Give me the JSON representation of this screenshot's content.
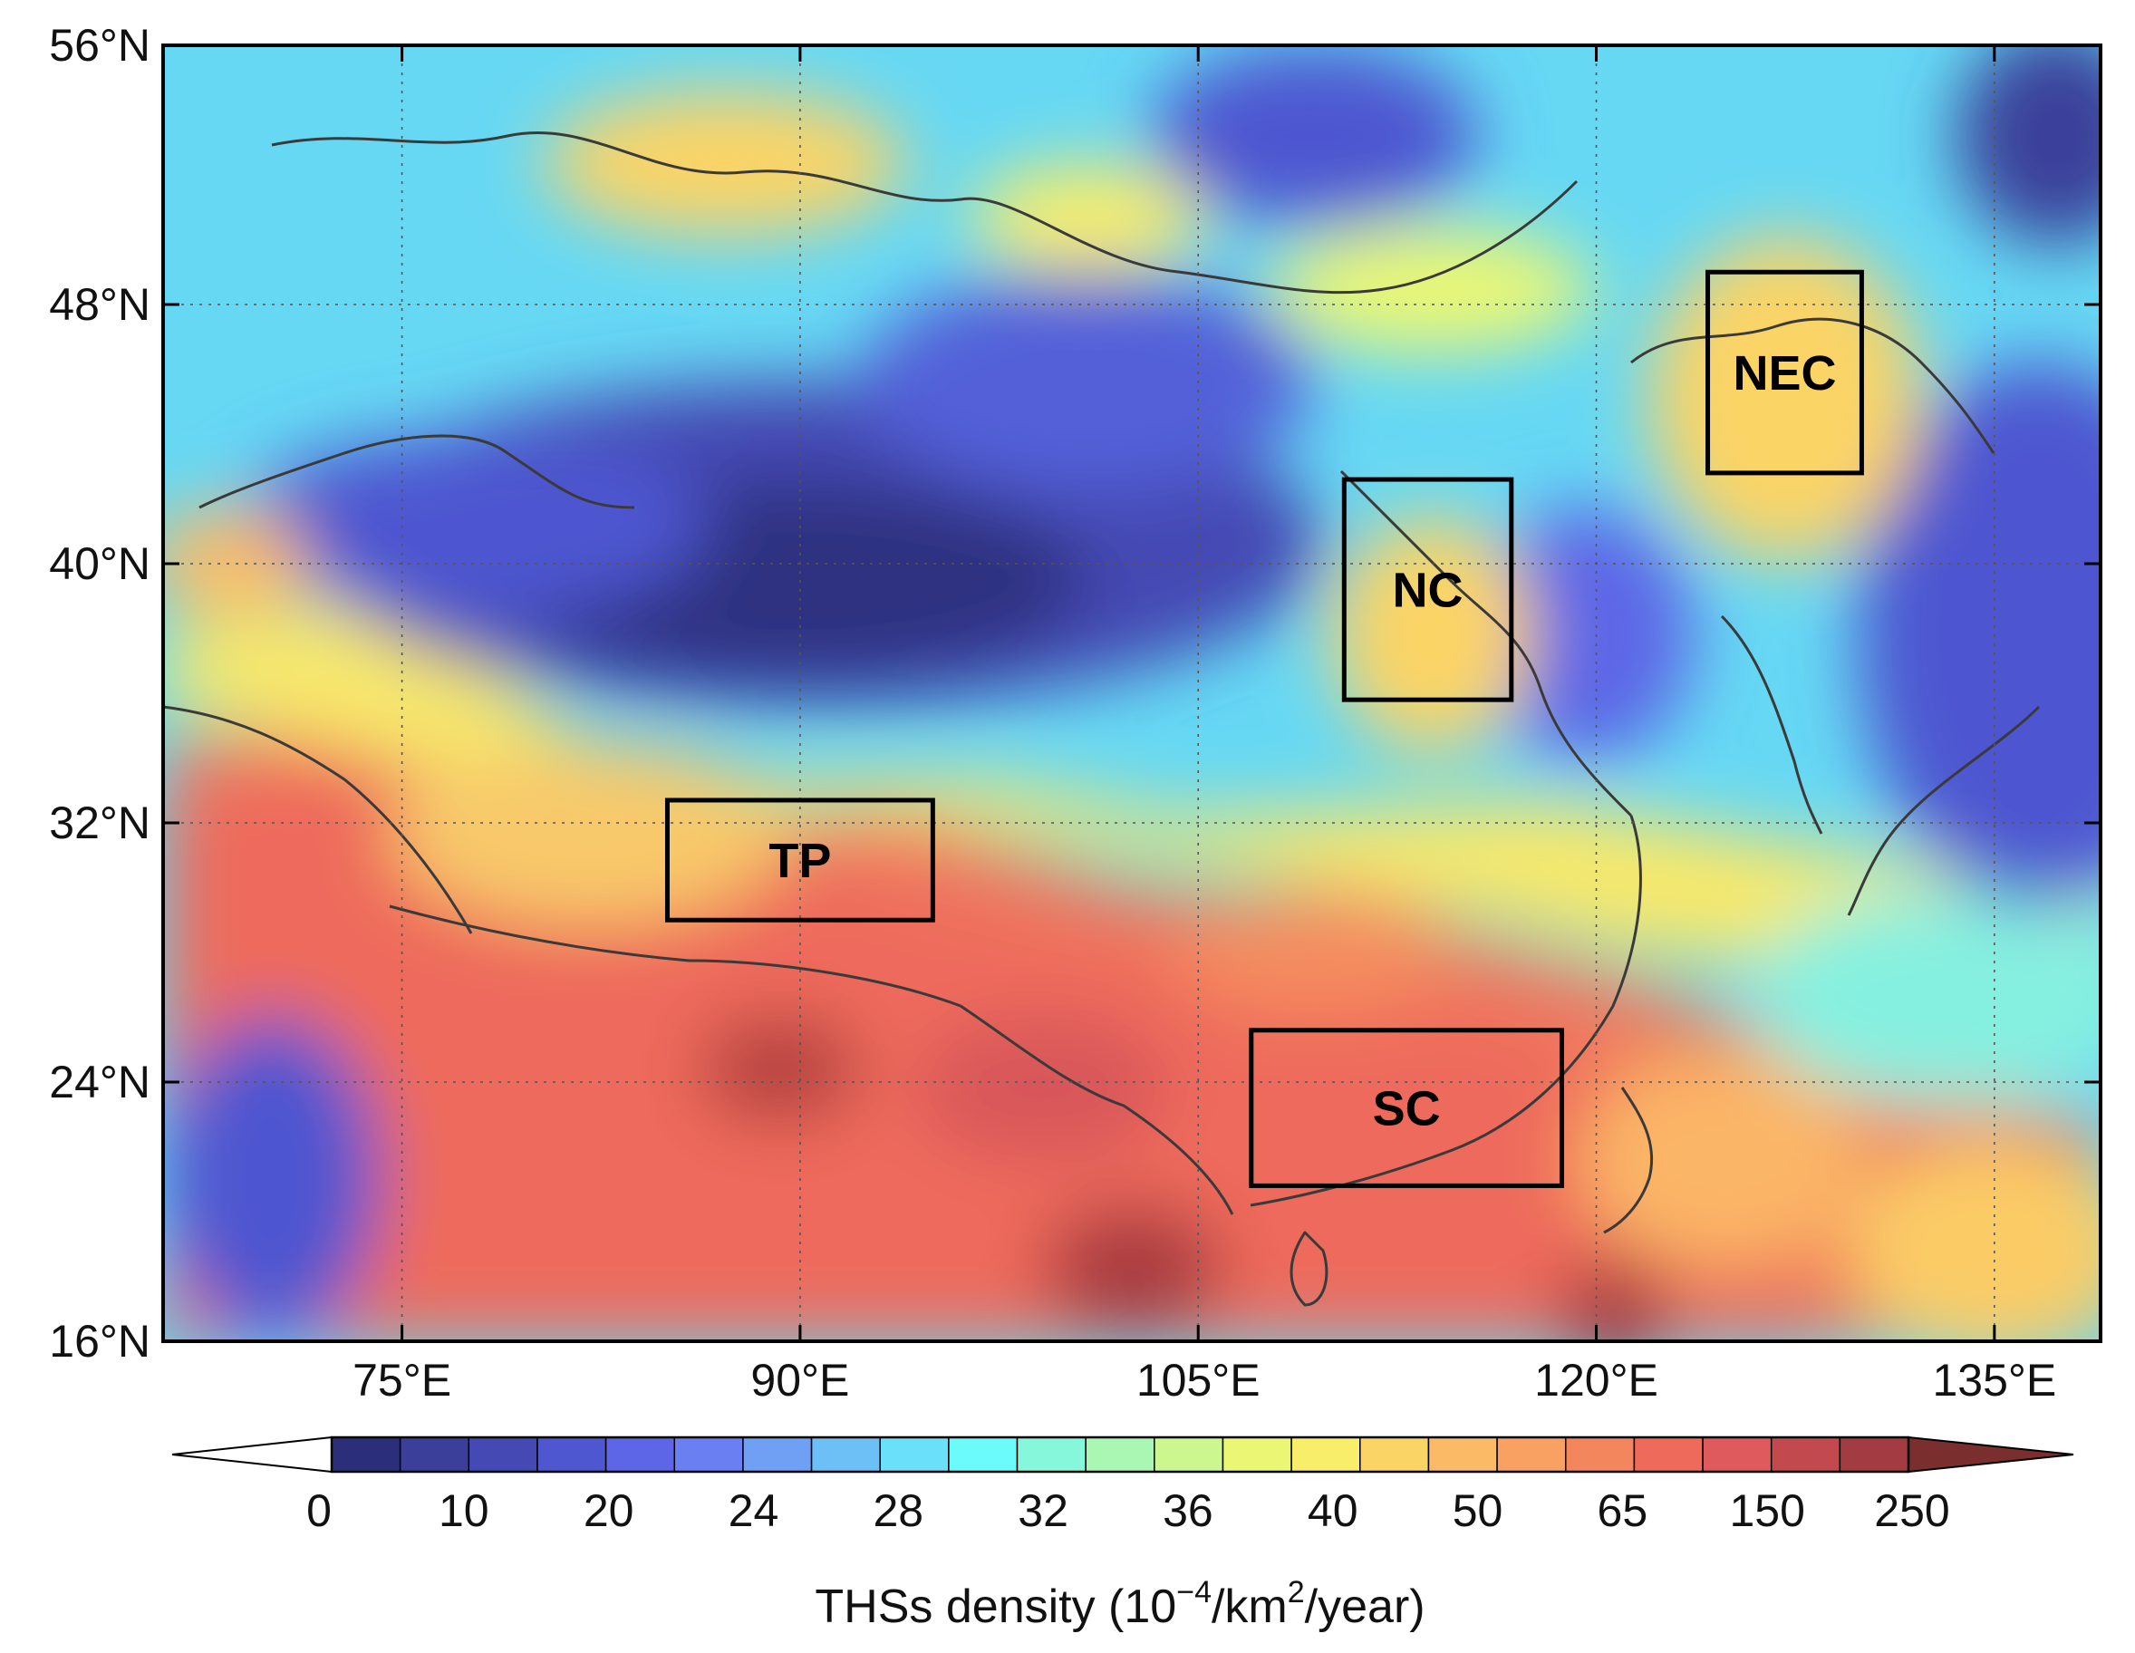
{
  "map": {
    "lon_range": [
      66,
      139
    ],
    "lat_range": [
      16,
      56
    ],
    "lon_ticks": [
      {
        "value": 75,
        "label": "75°E"
      },
      {
        "value": 90,
        "label": "90°E"
      },
      {
        "value": 105,
        "label": "105°E"
      },
      {
        "value": 120,
        "label": "120°E"
      },
      {
        "value": 135,
        "label": "135°E"
      }
    ],
    "lat_ticks": [
      {
        "value": 56,
        "label": "56°N"
      },
      {
        "value": 48,
        "label": "48°N"
      },
      {
        "value": 40,
        "label": "40°N"
      },
      {
        "value": 32,
        "label": "32°N"
      },
      {
        "value": 24,
        "label": "24°N"
      },
      {
        "value": 16,
        "label": "16°N"
      }
    ],
    "grid": "dotted",
    "regions": [
      {
        "id": "nec",
        "label": "NEC",
        "lon": [
          124.2,
          130.0
        ],
        "lat": [
          42.8,
          49.0
        ]
      },
      {
        "id": "nc",
        "label": "NC",
        "lon": [
          110.5,
          116.8
        ],
        "lat": [
          35.8,
          42.6
        ]
      },
      {
        "id": "tp",
        "label": "TP",
        "lon": [
          85.0,
          95.0
        ],
        "lat": [
          29.0,
          32.7
        ]
      },
      {
        "id": "sc",
        "label": "SC",
        "lon": [
          107.0,
          118.7
        ],
        "lat": [
          20.8,
          25.6
        ]
      }
    ]
  },
  "colorbar": {
    "title_main": "THSs density (10",
    "title_exp1": "−4",
    "title_mid": "/km",
    "title_exp2": "2",
    "title_end": "/year)",
    "labels": [
      "0",
      "10",
      "20",
      "24",
      "28",
      "32",
      "36",
      "40",
      "50",
      "65",
      "150",
      "250"
    ],
    "under_color": "#ffffff",
    "over_color": "#7a2e2e",
    "colors": [
      "#2b2f7a",
      "#3b3f9a",
      "#4449b4",
      "#4e56d0",
      "#5d66e6",
      "#6a80f2",
      "#6fa0f3",
      "#6dc0f6",
      "#6ae0fb",
      "#6cfbfb",
      "#86f7da",
      "#a9f7b2",
      "#cbf78e",
      "#ebf774",
      "#f8ee6a",
      "#fbd466",
      "#fbbb66",
      "#f8a162",
      "#f3865c",
      "#ee6b5c",
      "#df5a5c",
      "#c24a4f",
      "#a33c42"
    ]
  },
  "colors": {
    "frame": "#000000",
    "border_line": "#3a3a3a",
    "grid": "#555555"
  }
}
